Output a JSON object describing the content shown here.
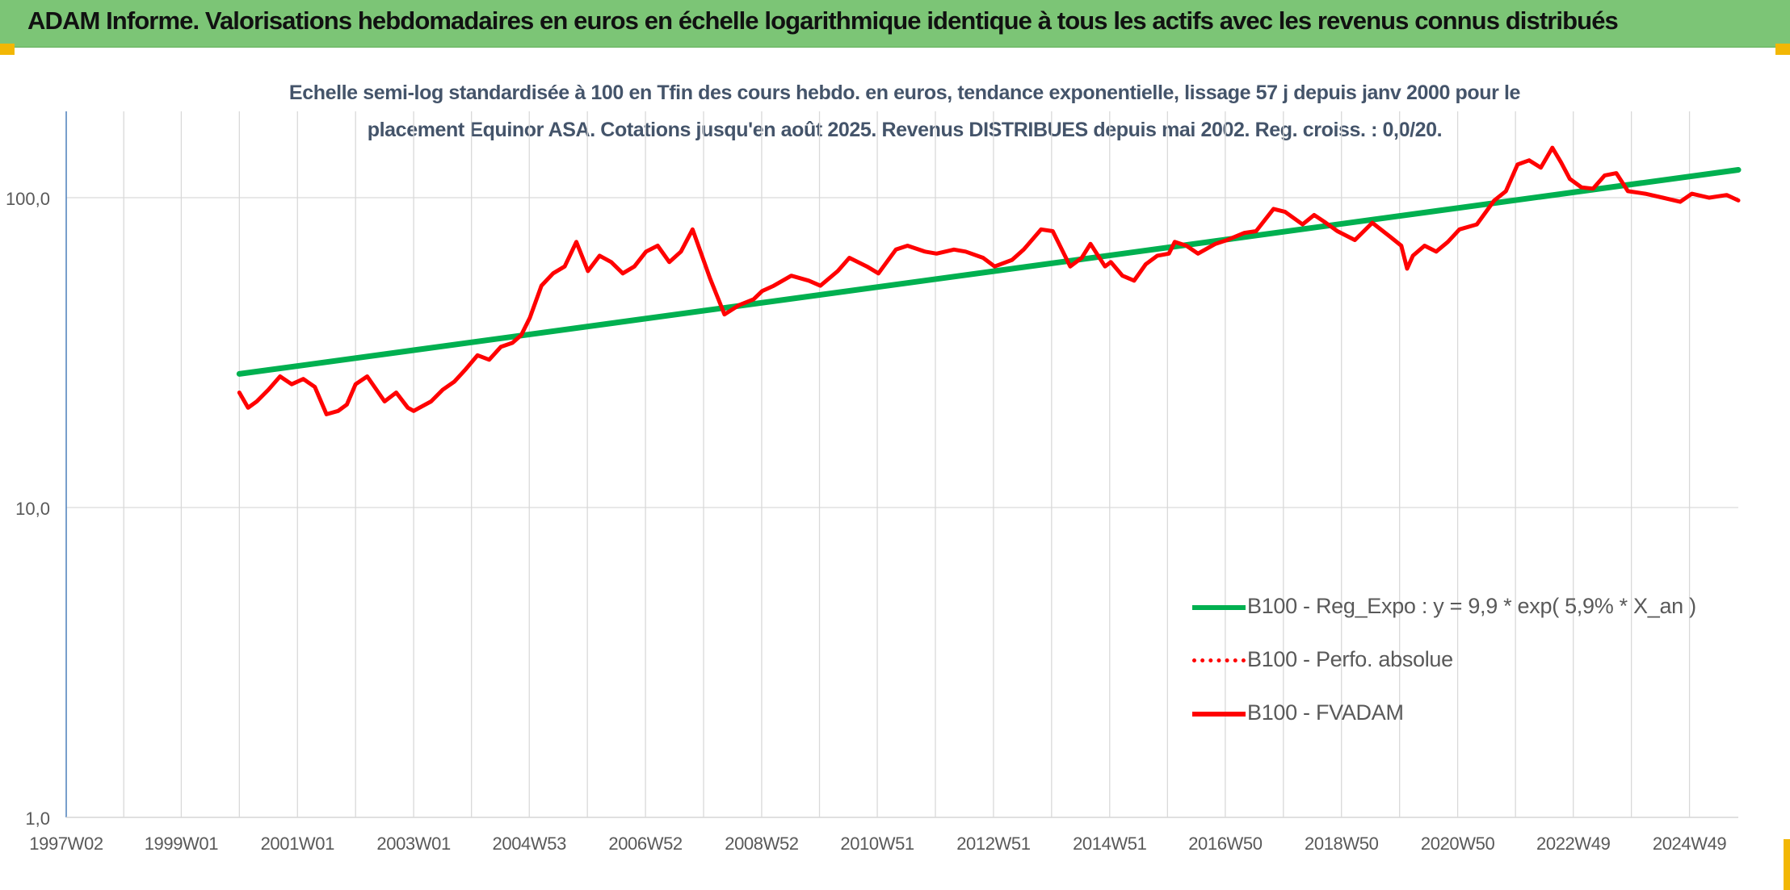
{
  "header": {
    "title": "ADAM Informe. Valorisations hebdomadaires en euros en échelle logarithmique identique à tous les actifs avec les revenus connus distribués"
  },
  "chart_data": {
    "type": "line",
    "title_lines": [
      "Echelle semi-log standardisée à 100 en Tfin des cours hebdo. en euros, tendance exponentielle, lissage 57 j depuis janv 2000 pour le",
      "placement Equinor ASA. Cotations jusqu'en août 2025. Revenus DISTRIBUES depuis mai 2002. Reg. croiss. : 0,0/20."
    ],
    "yscale": "log",
    "ylim": [
      1,
      190
    ],
    "yticks": [
      {
        "value": 1,
        "label": "1,0"
      },
      {
        "value": 10,
        "label": "10,0"
      },
      {
        "value": 100,
        "label": "100,0"
      }
    ],
    "xlim": [
      1997.02,
      2025.8
    ],
    "xtick_labels": [
      "1997W02",
      "1999W01",
      "2001W01",
      "2003W01",
      "2004W53",
      "2006W52",
      "2008W52",
      "2010W51",
      "2012W51",
      "2014W51",
      "2016W50",
      "2018W50",
      "2020W50",
      "2022W49",
      "2024W49"
    ],
    "xtick_years": [
      1997.02,
      1999.0,
      2001.0,
      2003.0,
      2004.99,
      2006.99,
      2008.99,
      2010.98,
      2012.98,
      2014.98,
      2016.97,
      2018.97,
      2020.97,
      2022.96,
      2024.96
    ],
    "grid": true,
    "legend_position": "lower-right",
    "series": [
      {
        "name": "B100 - Reg_Expo : y = 9,9 * exp( 5,9% *  X_an )",
        "color": "#00b050",
        "style": "solid",
        "x": [
          2000.0,
          2025.8
        ],
        "y": [
          27,
          123
        ]
      },
      {
        "name": "B100 - Perfo. absolue",
        "color": "#ff0000",
        "style": "dotted",
        "x": [],
        "y": []
      },
      {
        "name": "B100 - FVADAM",
        "color": "#ff0000",
        "style": "solid",
        "x": [
          2000.0,
          2000.15,
          2000.3,
          2000.5,
          2000.7,
          2000.9,
          2001.1,
          2001.3,
          2001.5,
          2001.7,
          2001.85,
          2002.0,
          2002.2,
          2002.5,
          2002.7,
          2002.9,
          2003.0,
          2003.1,
          2003.3,
          2003.5,
          2003.7,
          2003.9,
          2004.1,
          2004.3,
          2004.5,
          2004.7,
          2004.85,
          2005.0,
          2005.2,
          2005.4,
          2005.6,
          2005.8,
          2006.0,
          2006.2,
          2006.4,
          2006.6,
          2006.8,
          2007.0,
          2007.2,
          2007.4,
          2007.6,
          2007.8,
          2007.95,
          2008.1,
          2008.35,
          2008.6,
          2008.85,
          2009.0,
          2009.2,
          2009.5,
          2009.8,
          2010.0,
          2010.3,
          2010.5,
          2010.8,
          2011.0,
          2011.3,
          2011.5,
          2011.8,
          2012.0,
          2012.3,
          2012.5,
          2012.8,
          2013.0,
          2013.3,
          2013.5,
          2013.8,
          2014.0,
          2014.3,
          2014.5,
          2014.65,
          2014.9,
          2015.0,
          2015.2,
          2015.4,
          2015.6,
          2015.8,
          2016.0,
          2016.1,
          2016.3,
          2016.5,
          2016.8,
          2017.0,
          2017.3,
          2017.5,
          2017.8,
          2018.0,
          2018.3,
          2018.5,
          2018.7,
          2018.9,
          2019.2,
          2019.5,
          2019.8,
          2020.0,
          2020.1,
          2020.2,
          2020.4,
          2020.6,
          2020.8,
          2021.0,
          2021.3,
          2021.6,
          2021.8,
          2022.0,
          2022.2,
          2022.4,
          2022.6,
          2022.75,
          2022.9,
          2023.1,
          2023.3,
          2023.5,
          2023.7,
          2023.9,
          2024.2,
          2024.5,
          2024.8,
          2025.0,
          2025.3,
          2025.6,
          2025.8
        ],
        "y": [
          23.5,
          21,
          22,
          24,
          26.5,
          25,
          26,
          24.5,
          20,
          20.5,
          21.5,
          25,
          26.5,
          22,
          23.5,
          21,
          20.5,
          21,
          22,
          24,
          25.5,
          28,
          31,
          30,
          33,
          34,
          36,
          41,
          52,
          57,
          60,
          72,
          58,
          65,
          62,
          57,
          60,
          67,
          70,
          62,
          67,
          79,
          66,
          55,
          42,
          45,
          47,
          50,
          52,
          56,
          54,
          52,
          58,
          64,
          60,
          57,
          68,
          70,
          67,
          66,
          68,
          67,
          64,
          60,
          63,
          68,
          79,
          78,
          60,
          64,
          71,
          60,
          62,
          56,
          54,
          61,
          65,
          66,
          72,
          70,
          66,
          71,
          73,
          77,
          78,
          92,
          90,
          82,
          88,
          83,
          78,
          73,
          83,
          75,
          70,
          59,
          65,
          70,
          67,
          72,
          79,
          82,
          98,
          105,
          128,
          132,
          125,
          145,
          130,
          115,
          108,
          107,
          118,
          120,
          105,
          103,
          100,
          97,
          103,
          100,
          102,
          98
        ]
      }
    ]
  }
}
